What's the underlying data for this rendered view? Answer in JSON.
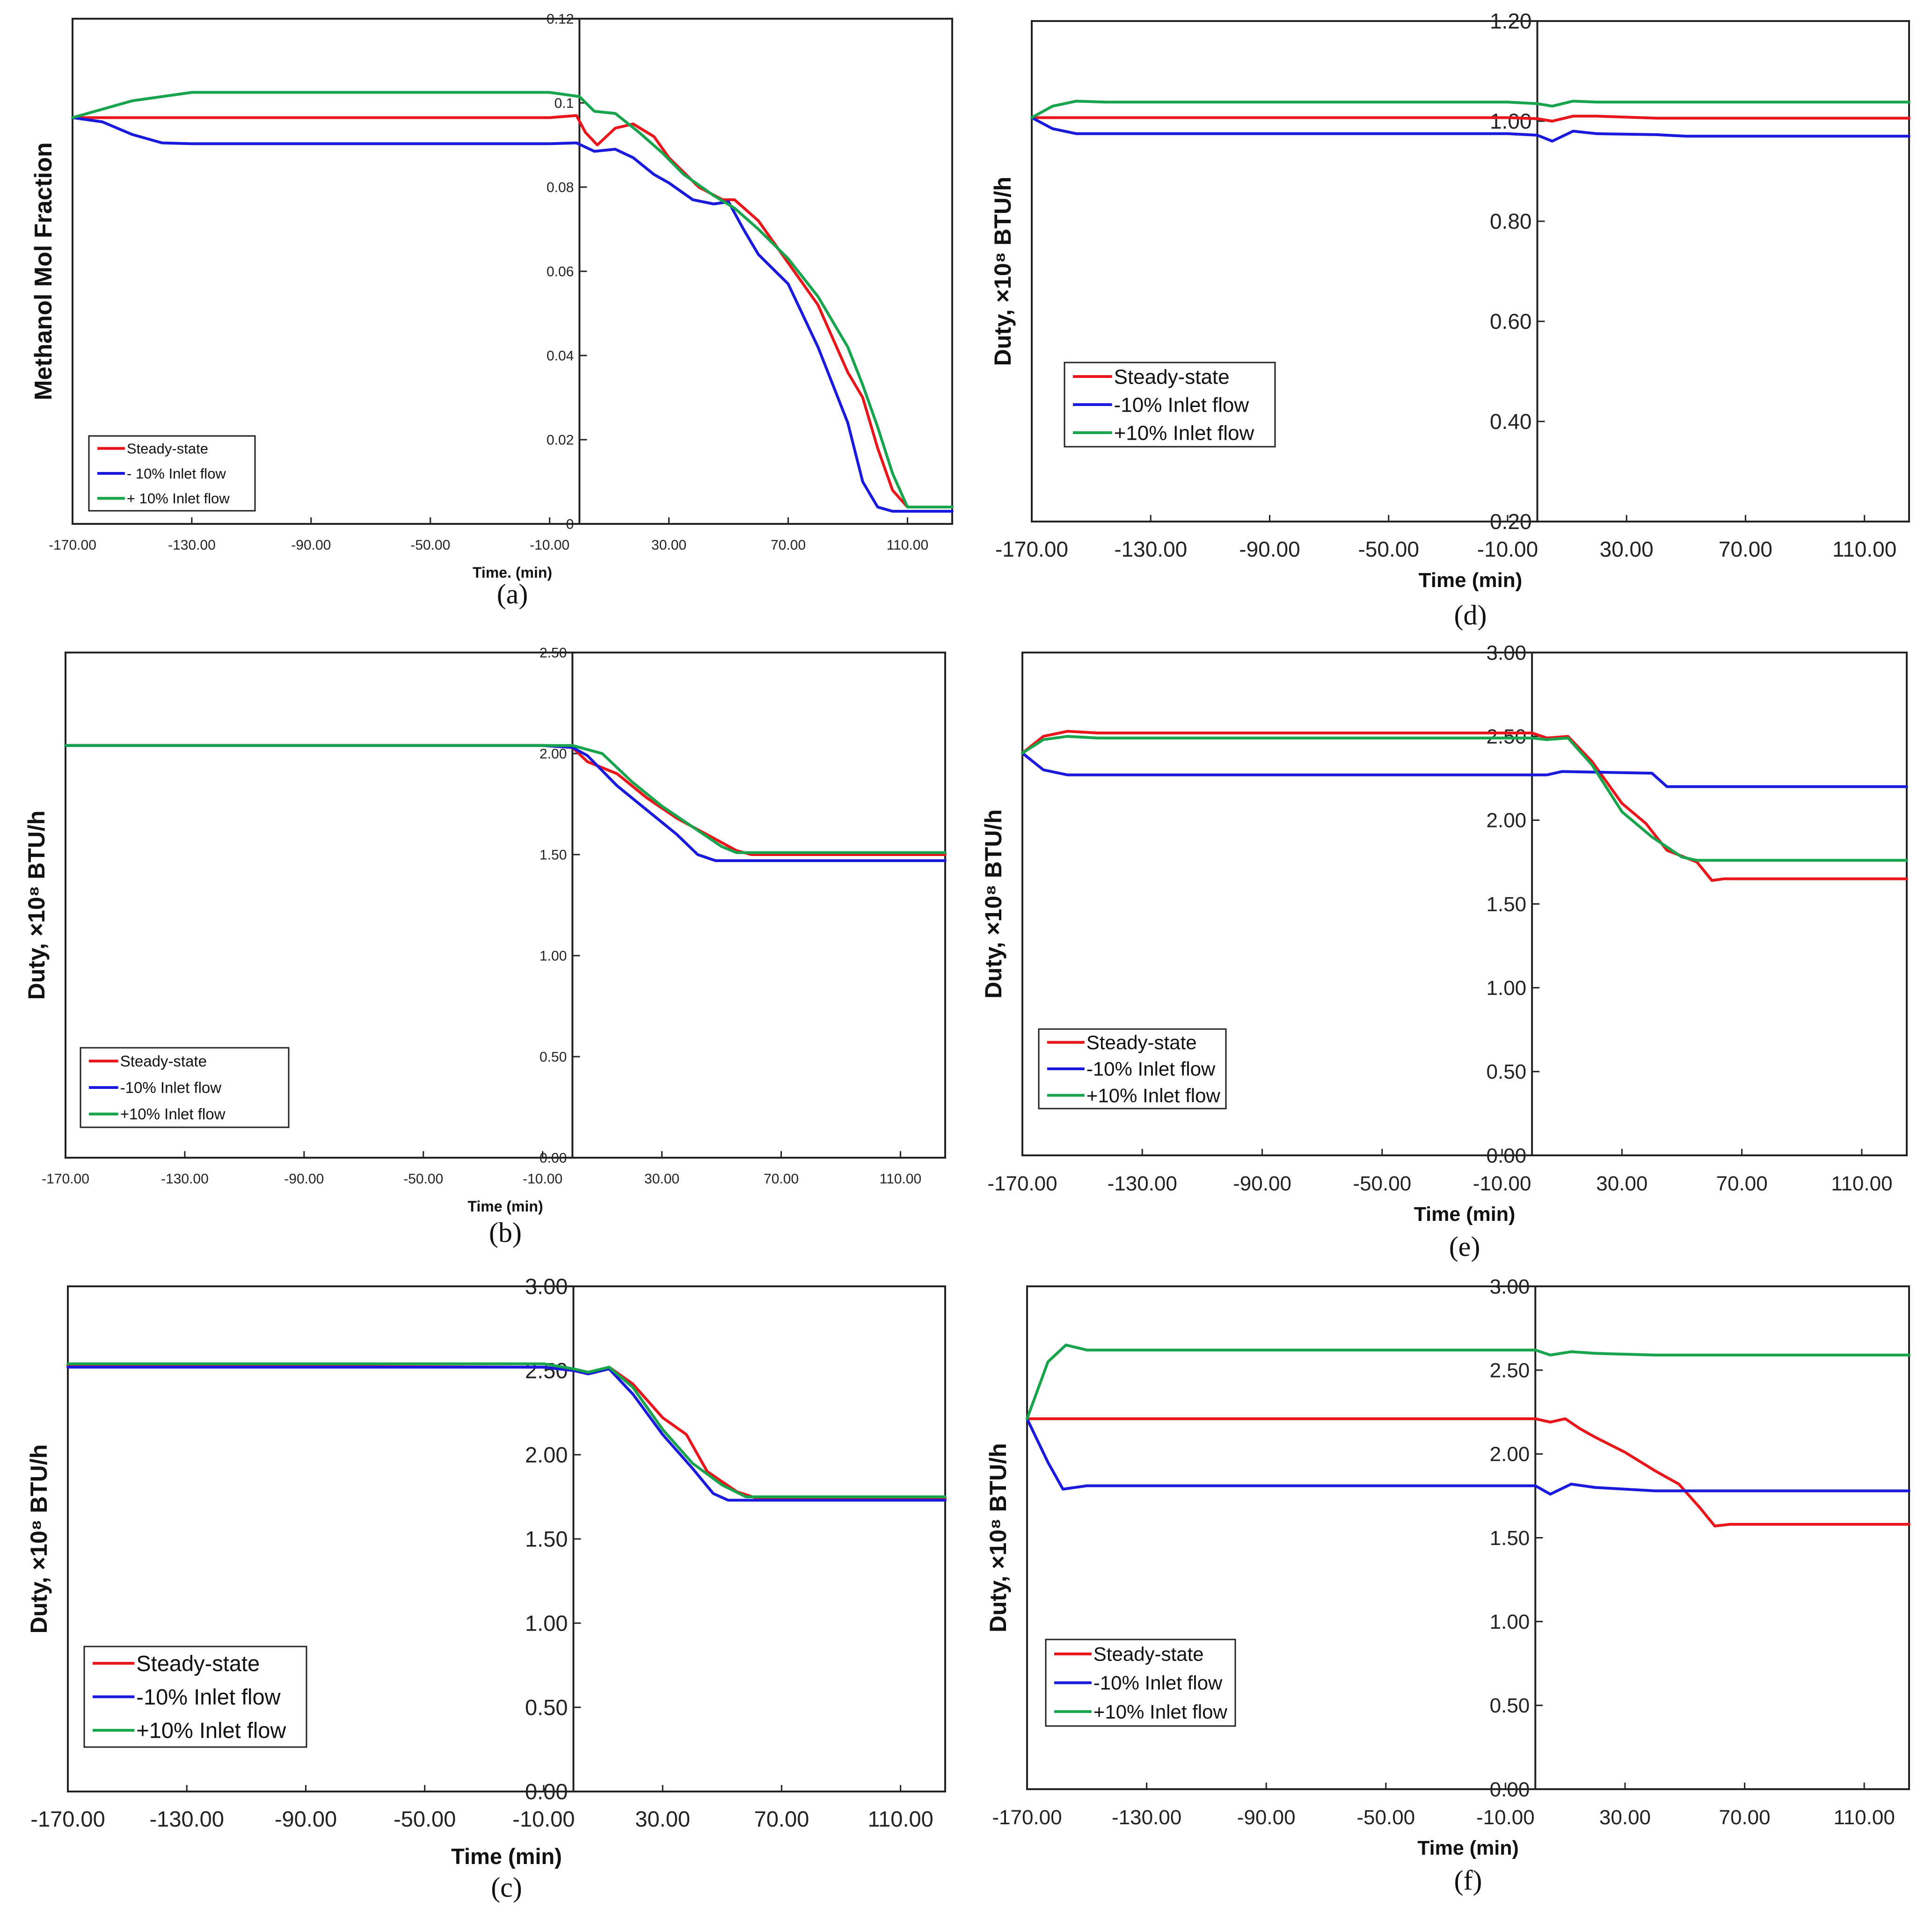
{
  "colors": {
    "steady": "#e8161b",
    "minus": "#1a1adc",
    "plus": "#18a44c"
  },
  "chart_data": [
    {
      "id": "a",
      "panel_label": "(a)",
      "type": "line",
      "ylabel": "Methanol Mol Fraction",
      "xlabel": "Time. (min)",
      "xlim": [
        -170,
        125
      ],
      "ylim": [
        0,
        0.12
      ],
      "x_ticks": [
        -170,
        -130,
        -90,
        -50,
        -10,
        30,
        70,
        110
      ],
      "x_tick_labels": [
        "-170.00",
        "-130.00",
        "-90.00",
        "-50.00",
        "-10.00",
        "30.00",
        "70.00",
        "110.00"
      ],
      "y_ticks": [
        0,
        0.02,
        0.04,
        0.06,
        0.08,
        0.1,
        0.12
      ],
      "y_tick_labels": [
        "0",
        "0.02",
        "0.04",
        "0.06",
        "0.08",
        "0.1",
        "0.12"
      ],
      "vline_x": 0,
      "legend": [
        "Steady-state",
        "- 10% Inlet flow",
        "+ 10% Inlet flow"
      ],
      "series": [
        {
          "name": "Steady-state",
          "color_key": "steady",
          "x": [
            -170,
            -160,
            -10,
            -1,
            2,
            6,
            12,
            18,
            25,
            30,
            40,
            48,
            52,
            60,
            70,
            80,
            90,
            95,
            100,
            105,
            110,
            115,
            125
          ],
          "y": [
            0.0965,
            0.0965,
            0.0965,
            0.097,
            0.093,
            0.09,
            0.094,
            0.095,
            0.092,
            0.087,
            0.08,
            0.077,
            0.077,
            0.072,
            0.062,
            0.052,
            0.036,
            0.03,
            0.018,
            0.008,
            0.004,
            0.004,
            0.004
          ]
        },
        {
          "name": "- 10% Inlet flow",
          "color_key": "minus",
          "x": [
            -170,
            -160,
            -150,
            -140,
            -130,
            -10,
            -1,
            5,
            12,
            18,
            25,
            30,
            38,
            45,
            50,
            55,
            60,
            70,
            80,
            85,
            90,
            95,
            100,
            105,
            110,
            125
          ],
          "y": [
            0.0965,
            0.0955,
            0.0925,
            0.0905,
            0.0903,
            0.0903,
            0.0905,
            0.0885,
            0.089,
            0.087,
            0.083,
            0.081,
            0.077,
            0.076,
            0.0765,
            0.07,
            0.064,
            0.057,
            0.042,
            0.033,
            0.024,
            0.01,
            0.004,
            0.003,
            0.003,
            0.003
          ]
        },
        {
          "name": "+ 10% Inlet flow",
          "color_key": "plus",
          "x": [
            -170,
            -160,
            -150,
            -140,
            -130,
            -100,
            -10,
            0,
            5,
            12,
            20,
            28,
            35,
            45,
            52,
            60,
            70,
            80,
            90,
            95,
            100,
            105,
            110,
            115,
            125
          ],
          "y": [
            0.0965,
            0.0985,
            0.1005,
            0.1015,
            0.1025,
            0.1025,
            0.1025,
            0.1015,
            0.098,
            0.0975,
            0.093,
            0.088,
            0.083,
            0.078,
            0.075,
            0.07,
            0.063,
            0.054,
            0.042,
            0.033,
            0.023,
            0.012,
            0.004,
            0.004,
            0.004
          ]
        }
      ]
    },
    {
      "id": "b",
      "panel_label": "(b)",
      "type": "line",
      "ylabel": "Duty, ×10⁸ BTU/h",
      "xlabel": "Time (min)",
      "xlim": [
        -170,
        125
      ],
      "ylim": [
        0,
        2.5
      ],
      "x_ticks": [
        -170,
        -130,
        -90,
        -50,
        -10,
        30,
        70,
        110
      ],
      "x_tick_labels": [
        "-170.00",
        "-130.00",
        "-90.00",
        "-50.00",
        "-10.00",
        "30.00",
        "70.00",
        "110.00"
      ],
      "y_ticks": [
        0,
        0.5,
        1.0,
        1.5,
        2.0,
        2.5
      ],
      "y_tick_labels": [
        "0.00",
        "0.50",
        "1.00",
        "1.50",
        "2.00",
        "2.50"
      ],
      "vline_x": 0,
      "legend": [
        "Steady-state",
        "-10% Inlet flow",
        "+10% Inlet flow"
      ],
      "series": [
        {
          "name": "Steady-state",
          "color_key": "steady",
          "x": [
            -170,
            -10,
            0,
            5,
            15,
            25,
            35,
            45,
            55,
            60,
            125
          ],
          "y": [
            2.04,
            2.04,
            2.03,
            1.96,
            1.9,
            1.78,
            1.68,
            1.6,
            1.52,
            1.5,
            1.5
          ]
        },
        {
          "name": "-10% Inlet flow",
          "color_key": "minus",
          "x": [
            -170,
            -10,
            0,
            5,
            15,
            25,
            35,
            42,
            48,
            125
          ],
          "y": [
            2.04,
            2.04,
            2.03,
            1.99,
            1.84,
            1.72,
            1.6,
            1.5,
            1.47,
            1.47
          ]
        },
        {
          "name": "+10% Inlet flow",
          "color_key": "plus",
          "x": [
            -170,
            -10,
            0,
            10,
            20,
            30,
            40,
            50,
            55,
            125
          ],
          "y": [
            2.04,
            2.04,
            2.04,
            2.0,
            1.86,
            1.74,
            1.64,
            1.54,
            1.51,
            1.51
          ]
        }
      ]
    },
    {
      "id": "c",
      "panel_label": "(c)",
      "type": "line",
      "ylabel": "Duty, ×10⁸ BTU/h",
      "xlabel": "Time (min)",
      "xlim": [
        -170,
        125
      ],
      "ylim": [
        0,
        3.0
      ],
      "x_ticks": [
        -170,
        -130,
        -90,
        -50,
        -10,
        30,
        70,
        110
      ],
      "x_tick_labels": [
        "-170.00",
        "-130.00",
        "-90.00",
        "-50.00",
        "-10.00",
        "30.00",
        "70.00",
        "110.00"
      ],
      "y_ticks": [
        0,
        0.5,
        1.0,
        1.5,
        2.0,
        2.5,
        3.0
      ],
      "y_tick_labels": [
        "0.00",
        "0.50",
        "1.00",
        "1.50",
        "2.00",
        "2.50",
        "3.00"
      ],
      "vline_x": 0,
      "legend": [
        "Steady-state",
        "-10% Inlet flow",
        "+10% Inlet flow"
      ],
      "series": [
        {
          "name": "Steady-state",
          "color_key": "steady",
          "x": [
            -170,
            -10,
            0,
            5,
            12,
            20,
            30,
            38,
            45,
            55,
            62,
            125
          ],
          "y": [
            2.53,
            2.52,
            2.5,
            2.48,
            2.52,
            2.42,
            2.22,
            2.12,
            1.9,
            1.78,
            1.74,
            1.74
          ]
        },
        {
          "name": "-10% Inlet flow",
          "color_key": "minus",
          "x": [
            -170,
            -10,
            0,
            5,
            12,
            20,
            30,
            40,
            47,
            52,
            125
          ],
          "y": [
            2.52,
            2.52,
            2.5,
            2.48,
            2.51,
            2.36,
            2.12,
            1.92,
            1.77,
            1.73,
            1.73
          ]
        },
        {
          "name": "+10% Inlet flow",
          "color_key": "plus",
          "x": [
            -170,
            -10,
            0,
            5,
            12,
            20,
            30,
            40,
            50,
            58,
            125
          ],
          "y": [
            2.54,
            2.54,
            2.51,
            2.49,
            2.52,
            2.4,
            2.15,
            1.95,
            1.82,
            1.75,
            1.75
          ]
        }
      ]
    },
    {
      "id": "d",
      "panel_label": "(d)",
      "type": "line",
      "ylabel": "Duty, ×10⁸ BTU/h",
      "xlabel": "Time (min)",
      "xlim": [
        -170,
        125
      ],
      "ylim": [
        0.2,
        1.2
      ],
      "x_ticks": [
        -170,
        -130,
        -90,
        -50,
        -10,
        30,
        70,
        110
      ],
      "x_tick_labels": [
        "-170.00",
        "-130.00",
        "-90.00",
        "-50.00",
        "-10.00",
        "30.00",
        "70.00",
        "110.00"
      ],
      "y_ticks": [
        0.2,
        0.4,
        0.6,
        0.8,
        1.0,
        1.2
      ],
      "y_tick_labels": [
        "0.20",
        "0.40",
        "0.60",
        "0.80",
        "1.00",
        "1.20"
      ],
      "vline_x": 0,
      "legend": [
        "Steady-state",
        "-10% Inlet flow",
        "+10% Inlet flow"
      ],
      "series": [
        {
          "name": "Steady-state",
          "color_key": "steady",
          "x": [
            -170,
            -10,
            0,
            5,
            12,
            20,
            40,
            125
          ],
          "y": [
            1.007,
            1.007,
            1.005,
            1.0,
            1.01,
            1.01,
            1.006,
            1.006
          ]
        },
        {
          "name": "-10% Inlet flow",
          "color_key": "minus",
          "x": [
            -170,
            -163,
            -155,
            -145,
            -10,
            0,
            5,
            12,
            20,
            40,
            50,
            125
          ],
          "y": [
            1.007,
            0.985,
            0.975,
            0.975,
            0.975,
            0.972,
            0.96,
            0.98,
            0.975,
            0.973,
            0.97,
            0.97
          ]
        },
        {
          "name": "+10% Inlet flow",
          "color_key": "plus",
          "x": [
            -170,
            -163,
            -155,
            -145,
            -10,
            0,
            5,
            12,
            20,
            125
          ],
          "y": [
            1.007,
            1.03,
            1.04,
            1.038,
            1.038,
            1.035,
            1.03,
            1.04,
            1.038,
            1.038
          ]
        }
      ]
    },
    {
      "id": "e",
      "panel_label": "(e)",
      "type": "line",
      "ylabel": "Duty, ×10⁸ BTU/h",
      "xlabel": "Time (min)",
      "xlim": [
        -170,
        125
      ],
      "ylim": [
        0,
        3.0
      ],
      "x_ticks": [
        -170,
        -130,
        -90,
        -50,
        -10,
        30,
        70,
        110
      ],
      "x_tick_labels": [
        "-170.00",
        "-130.00",
        "-90.00",
        "-50.00",
        "-10.00",
        "30.00",
        "70.00",
        "110.00"
      ],
      "y_ticks": [
        0,
        0.5,
        1.0,
        1.5,
        2.0,
        2.5,
        3.0
      ],
      "y_tick_labels": [
        "0.00",
        "0.50",
        "1.00",
        "1.50",
        "2.00",
        "2.50",
        "3.00"
      ],
      "vline_x": 0,
      "legend": [
        "Steady-state",
        "-10% Inlet flow",
        "+10% Inlet flow"
      ],
      "series": [
        {
          "name": "Steady-state",
          "color_key": "steady",
          "x": [
            -170,
            -163,
            -155,
            -145,
            -10,
            0,
            5,
            12,
            20,
            30,
            38,
            45,
            55,
            60,
            64,
            125
          ],
          "y": [
            2.4,
            2.5,
            2.53,
            2.52,
            2.52,
            2.52,
            2.49,
            2.5,
            2.35,
            2.1,
            1.98,
            1.82,
            1.75,
            1.64,
            1.65,
            1.65
          ]
        },
        {
          "name": "-10% Inlet flow",
          "color_key": "minus",
          "x": [
            -170,
            -163,
            -155,
            -10,
            0,
            5,
            10,
            40,
            45,
            125
          ],
          "y": [
            2.4,
            2.3,
            2.27,
            2.27,
            2.27,
            2.27,
            2.29,
            2.28,
            2.2,
            2.2
          ]
        },
        {
          "name": "+10% Inlet flow",
          "color_key": "plus",
          "x": [
            -170,
            -163,
            -155,
            -145,
            -10,
            0,
            5,
            12,
            20,
            30,
            40,
            50,
            55,
            125
          ],
          "y": [
            2.4,
            2.48,
            2.5,
            2.49,
            2.49,
            2.49,
            2.48,
            2.49,
            2.33,
            2.05,
            1.9,
            1.78,
            1.76,
            1.76
          ]
        }
      ]
    },
    {
      "id": "f",
      "panel_label": "(f)",
      "type": "line",
      "ylabel": "Duty, ×10⁸ BTU/h",
      "xlabel": "Time (min)",
      "xlim": [
        -170,
        125
      ],
      "ylim": [
        0,
        3.0
      ],
      "x_ticks": [
        -170,
        -130,
        -90,
        -50,
        -10,
        30,
        70,
        110
      ],
      "x_tick_labels": [
        "-170.00",
        "-130.00",
        "-90.00",
        "-50.00",
        "-10.00",
        "30.00",
        "70.00",
        "110.00"
      ],
      "y_ticks": [
        0,
        0.5,
        1.0,
        1.5,
        2.0,
        2.5,
        3.0
      ],
      "y_tick_labels": [
        "0.00",
        "0.50",
        "1.00",
        "1.50",
        "2.00",
        "2.50",
        "3.00"
      ],
      "vline_x": 0,
      "legend": [
        "Steady-state",
        "-10% Inlet flow",
        "+10% Inlet flow"
      ],
      "series": [
        {
          "name": "Steady-state",
          "color_key": "steady",
          "x": [
            -170,
            -10,
            0,
            5,
            10,
            15,
            20,
            30,
            40,
            48,
            55,
            60,
            65,
            125
          ],
          "y": [
            2.21,
            2.21,
            2.21,
            2.19,
            2.21,
            2.15,
            2.1,
            2.01,
            1.9,
            1.82,
            1.68,
            1.57,
            1.58,
            1.58
          ]
        },
        {
          "name": "-10% Inlet flow",
          "color_key": "minus",
          "x": [
            -170,
            -163,
            -158,
            -150,
            -10,
            0,
            5,
            12,
            20,
            40,
            125
          ],
          "y": [
            2.21,
            1.95,
            1.79,
            1.81,
            1.81,
            1.81,
            1.76,
            1.82,
            1.8,
            1.78,
            1.78
          ]
        },
        {
          "name": "+10% Inlet flow",
          "color_key": "plus",
          "x": [
            -170,
            -163,
            -157,
            -150,
            -10,
            0,
            5,
            12,
            20,
            40,
            125
          ],
          "y": [
            2.21,
            2.55,
            2.65,
            2.62,
            2.62,
            2.62,
            2.59,
            2.61,
            2.6,
            2.59,
            2.59
          ]
        }
      ]
    }
  ]
}
